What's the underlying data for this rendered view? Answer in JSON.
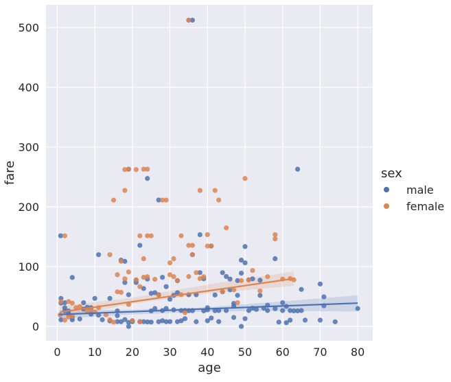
{
  "chart_data": {
    "type": "scatter",
    "title": "",
    "xlabel": "age",
    "ylabel": "fare",
    "xlim": [
      -3,
      84
    ],
    "ylim": [
      -24,
      538
    ],
    "xticks": [
      0,
      10,
      20,
      30,
      40,
      50,
      60,
      70,
      80
    ],
    "yticks": [
      0,
      100,
      200,
      300,
      400,
      500
    ],
    "xtick_labels": [
      "0",
      "10",
      "20",
      "30",
      "40",
      "50",
      "60",
      "70",
      "80"
    ],
    "ytick_labels": [
      "0",
      "100",
      "200",
      "300",
      "400",
      "500"
    ],
    "grid": true,
    "background": "#eaeaf2",
    "legend": {
      "title": "sex",
      "placement": "right",
      "entries": [
        "male",
        "female"
      ]
    },
    "series": [
      {
        "name": "male",
        "color": "#4c72b0",
        "regression": {
          "x": [
            0.5,
            80
          ],
          "y": [
            20,
            39
          ]
        },
        "ci_band": {
          "x": [
            0.5,
            20,
            40,
            60,
            80
          ],
          "lower": [
            13,
            20,
            25,
            26,
            25
          ],
          "upper": [
            27,
            28,
            32,
            42,
            52
          ]
        },
        "points": [
          [
            0.9,
            151.6
          ],
          [
            1,
            39
          ],
          [
            1,
            11.1
          ],
          [
            1,
            46.9
          ],
          [
            2,
            26
          ],
          [
            2,
            39.7
          ],
          [
            2,
            31.3
          ],
          [
            3,
            26
          ],
          [
            3,
            21
          ],
          [
            4,
            81.9
          ],
          [
            4,
            11.1
          ],
          [
            4,
            15.2
          ],
          [
            6,
            12.5
          ],
          [
            7,
            39.7
          ],
          [
            7,
            29.1
          ],
          [
            8,
            32
          ],
          [
            9,
            31.4
          ],
          [
            9,
            20.5
          ],
          [
            10,
            46.9
          ],
          [
            11,
            120
          ],
          [
            11,
            18.8
          ],
          [
            12,
            11.2
          ],
          [
            14,
            46.9
          ],
          [
            14,
            9.2
          ],
          [
            16,
            18
          ],
          [
            16,
            8.05
          ],
          [
            16,
            26
          ],
          [
            17,
            110.9
          ],
          [
            17,
            7.9
          ],
          [
            18,
            108.9
          ],
          [
            18,
            73.5
          ],
          [
            18,
            11.5
          ],
          [
            19,
            263
          ],
          [
            19,
            53.1
          ],
          [
            19,
            6.75
          ],
          [
            19,
            0
          ],
          [
            20,
            7.9
          ],
          [
            20,
            9.2
          ],
          [
            21,
            77.3
          ],
          [
            21,
            73.5
          ],
          [
            22,
            135.6
          ],
          [
            22,
            8.05
          ],
          [
            23,
            7.9
          ],
          [
            23,
            63.4
          ],
          [
            24,
            247.5
          ],
          [
            24,
            79.2
          ],
          [
            24,
            7.5
          ],
          [
            25,
            55.4
          ],
          [
            25,
            26
          ],
          [
            25,
            7.25
          ],
          [
            26,
            56.5
          ],
          [
            26,
            30
          ],
          [
            27,
            211.5
          ],
          [
            27,
            53.1
          ],
          [
            27,
            7.9
          ],
          [
            28,
            82.2
          ],
          [
            28,
            26.6
          ],
          [
            28,
            9.5
          ],
          [
            29,
            66.6
          ],
          [
            29,
            30
          ],
          [
            29,
            7.9
          ],
          [
            30,
            45.5
          ],
          [
            30,
            8.05
          ],
          [
            31,
            52
          ],
          [
            31,
            27.7
          ],
          [
            32,
            76.7
          ],
          [
            32,
            56.5
          ],
          [
            32,
            7.9
          ],
          [
            33,
            26.6
          ],
          [
            33,
            9.5
          ],
          [
            34,
            13
          ],
          [
            34,
            26.6
          ],
          [
            35,
            512.3
          ],
          [
            35,
            53.1
          ],
          [
            35,
            26.3
          ],
          [
            36,
            512.3
          ],
          [
            36,
            120
          ],
          [
            36,
            26.4
          ],
          [
            37,
            53.1
          ],
          [
            37,
            7.9
          ],
          [
            38,
            153.5
          ],
          [
            38,
            90
          ],
          [
            39,
            26
          ],
          [
            39,
            79.65
          ],
          [
            40,
            31.4
          ],
          [
            40,
            27.7
          ],
          [
            40,
            9.5
          ],
          [
            41,
            134.5
          ],
          [
            41,
            14.1
          ],
          [
            42,
            52.6
          ],
          [
            42,
            26.3
          ],
          [
            43,
            26.6
          ],
          [
            43,
            8.05
          ],
          [
            44,
            90
          ],
          [
            44,
            57.9
          ],
          [
            45,
            83.5
          ],
          [
            45,
            26.6
          ],
          [
            46,
            79.2
          ],
          [
            46,
            61.2
          ],
          [
            47,
            38.5
          ],
          [
            47,
            34
          ],
          [
            47,
            15
          ],
          [
            48,
            76.7
          ],
          [
            48,
            52
          ],
          [
            49,
            110.9
          ],
          [
            49,
            89.1
          ],
          [
            49,
            0
          ],
          [
            50,
            133.6
          ],
          [
            50,
            106.4
          ],
          [
            50,
            13
          ],
          [
            51,
            77.9
          ],
          [
            51,
            26.55
          ],
          [
            52,
            79.65
          ],
          [
            52,
            30.5
          ],
          [
            53,
            28.5
          ],
          [
            54,
            77.3
          ],
          [
            54,
            51.9
          ],
          [
            55,
            30.5
          ],
          [
            56,
            35.5
          ],
          [
            56,
            26.55
          ],
          [
            58,
            113.3
          ],
          [
            58,
            29.7
          ],
          [
            59,
            7.25
          ],
          [
            60,
            39.7
          ],
          [
            60,
            26.55
          ],
          [
            61,
            33.5
          ],
          [
            61,
            6.24
          ],
          [
            62,
            26.55
          ],
          [
            62,
            10.5
          ],
          [
            63,
            26
          ],
          [
            64,
            263
          ],
          [
            64,
            26
          ],
          [
            65,
            61.9
          ],
          [
            65,
            26.55
          ],
          [
            66,
            10.5
          ],
          [
            70,
            71
          ],
          [
            70,
            10.5
          ],
          [
            71,
            49.5
          ],
          [
            71,
            34.65
          ],
          [
            74,
            7.8
          ],
          [
            80,
            30
          ]
        ]
      },
      {
        "name": "female",
        "color": "#dd8452",
        "regression": {
          "x": [
            0.75,
            63
          ],
          "y": [
            24,
            80
          ]
        },
        "ci_band": {
          "x": [
            0.75,
            20,
            40,
            63
          ],
          "lower": [
            14,
            38,
            55,
            68
          ],
          "upper": [
            34,
            48,
            70,
            92
          ]
        },
        "points": [
          [
            0.75,
            19.3
          ],
          [
            1,
            41.6
          ],
          [
            2,
            151.6
          ],
          [
            2,
            10.5
          ],
          [
            3,
            41.6
          ],
          [
            3,
            15.9
          ],
          [
            4,
            39
          ],
          [
            4,
            16.7
          ],
          [
            5,
            31.4
          ],
          [
            6,
            33
          ],
          [
            8,
            26.25
          ],
          [
            9,
            27.9
          ],
          [
            10,
            24.2
          ],
          [
            11,
            31.3
          ],
          [
            13,
            19.5
          ],
          [
            14,
            120
          ],
          [
            14,
            11.2
          ],
          [
            15,
            211.3
          ],
          [
            15,
            7.2
          ],
          [
            16,
            86.5
          ],
          [
            16,
            57.9
          ],
          [
            17,
            108.9
          ],
          [
            17,
            57
          ],
          [
            18,
            262.4
          ],
          [
            18,
            227.5
          ],
          [
            18,
            79.65
          ],
          [
            19,
            263
          ],
          [
            19,
            91.1
          ],
          [
            19,
            36.75
          ],
          [
            20,
            9.8
          ],
          [
            21,
            262.4
          ],
          [
            21,
            77.96
          ],
          [
            22,
            151.6
          ],
          [
            22,
            66.6
          ],
          [
            22,
            7.75
          ],
          [
            23,
            263
          ],
          [
            23,
            113.3
          ],
          [
            23,
            82.27
          ],
          [
            24,
            263
          ],
          [
            24,
            151.6
          ],
          [
            24,
            83.16
          ],
          [
            25,
            151.6
          ],
          [
            26,
            78.85
          ],
          [
            27,
            52.5
          ],
          [
            28,
            211.3
          ],
          [
            29,
            211.3
          ],
          [
            30,
            106.4
          ],
          [
            30,
            86.5
          ],
          [
            31,
            113.3
          ],
          [
            31,
            83.16
          ],
          [
            32,
            76.3
          ],
          [
            33,
            151.6
          ],
          [
            33,
            53.1
          ],
          [
            34,
            23
          ],
          [
            35,
            512.3
          ],
          [
            35,
            135.6
          ],
          [
            35,
            83.47
          ],
          [
            36,
            135.6
          ],
          [
            36,
            120
          ],
          [
            37,
            90
          ],
          [
            38,
            227.5
          ],
          [
            38,
            80
          ],
          [
            39,
            83.16
          ],
          [
            40,
            153.5
          ],
          [
            40,
            134.5
          ],
          [
            41,
            134.5
          ],
          [
            42,
            227.5
          ],
          [
            43,
            211.5
          ],
          [
            44,
            57.98
          ],
          [
            45,
            164.9
          ],
          [
            47,
            61.2
          ],
          [
            48,
            39.6
          ],
          [
            49,
            76.7
          ],
          [
            50,
            247.5
          ],
          [
            51,
            77.96
          ],
          [
            52,
            93.5
          ],
          [
            54,
            59.4
          ],
          [
            56,
            83.16
          ],
          [
            58,
            153.5
          ],
          [
            58,
            146.5
          ],
          [
            60,
            79.2
          ],
          [
            62,
            80
          ],
          [
            63,
            77.96
          ]
        ]
      }
    ]
  }
}
